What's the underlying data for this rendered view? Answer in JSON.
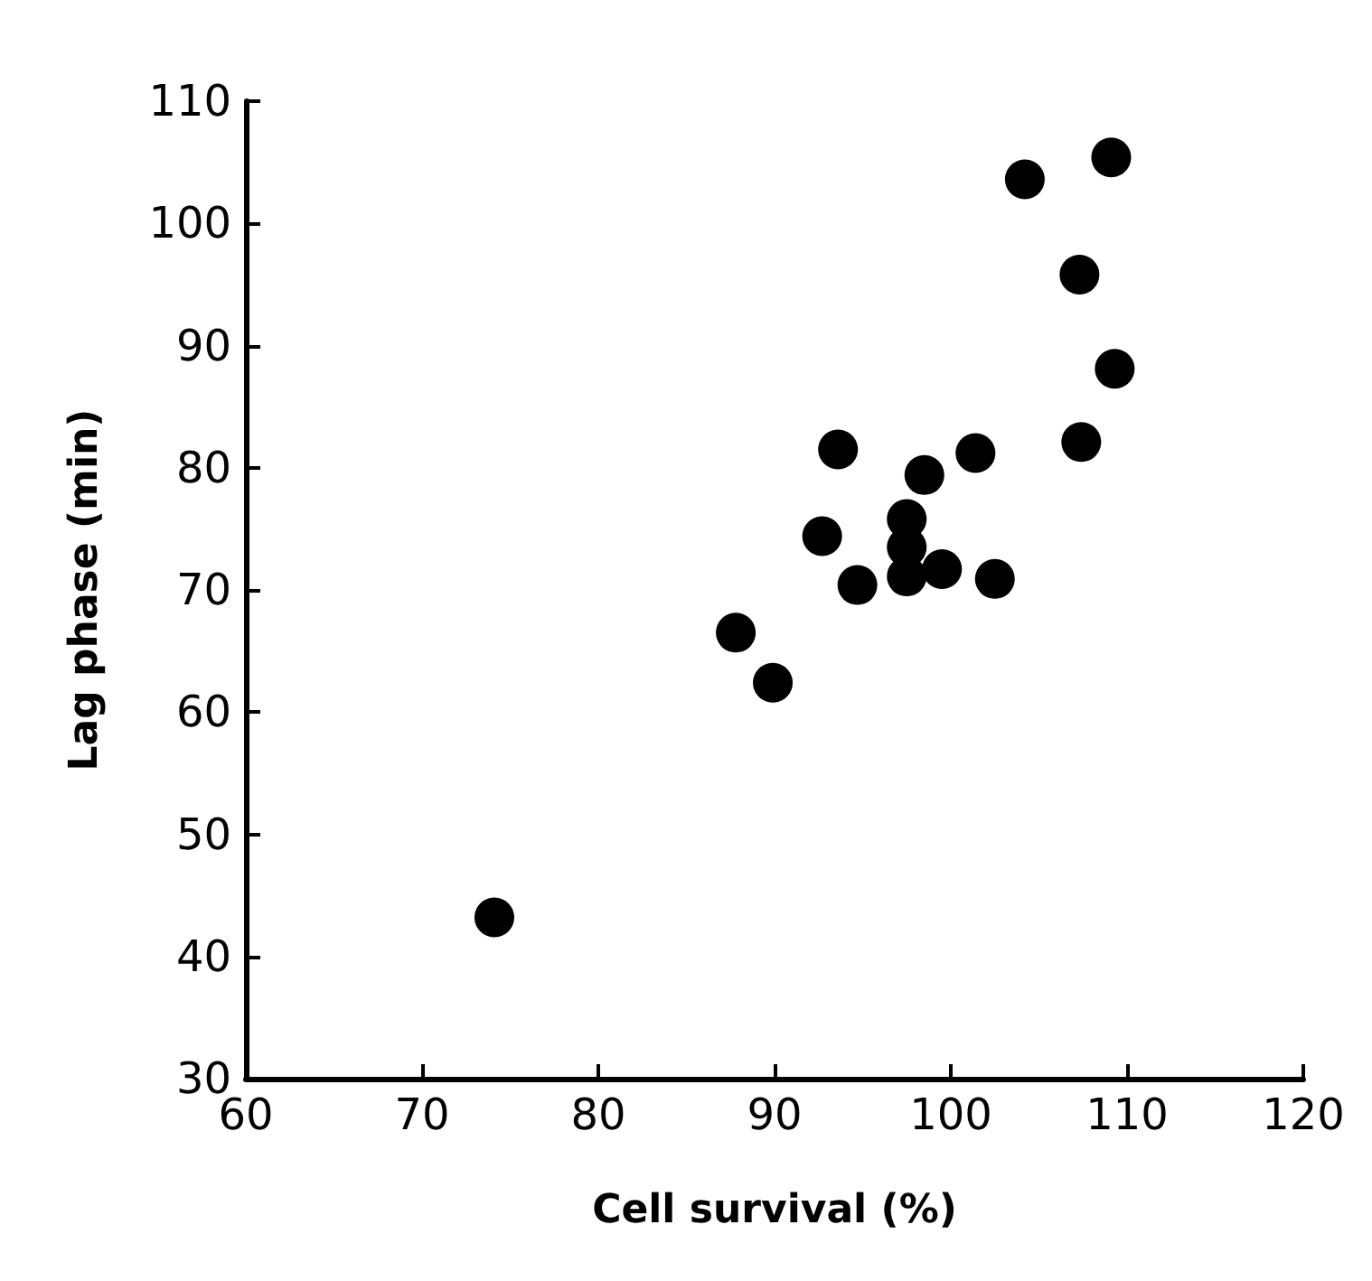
{
  "chart_data": {
    "type": "scatter",
    "xlabel": "Cell survival (%)",
    "ylabel": "Lag phase (min)",
    "x": [
      104.2,
      109.1,
      107.3,
      109.3,
      107.4,
      93.6,
      101.4,
      98.5,
      97.5,
      92.7,
      97.5,
      99.5,
      97.5,
      102.5,
      94.7,
      87.8,
      89.9,
      74.1
    ],
    "series": [
      {
        "color": "#000000",
        "values": [
          103.6,
          105.4,
          95.8,
          88.1,
          82.1,
          81.5,
          81.2,
          79.4,
          75.8,
          74.4,
          73.5,
          71.7,
          71.1,
          70.9,
          70.4,
          66.5,
          62.4,
          43.2
        ]
      }
    ],
    "xlim": [
      60,
      120
    ],
    "xticks": [
      60,
      70,
      80,
      90,
      100,
      110,
      120
    ],
    "ylim": [
      30,
      110
    ],
    "yticks": [
      30,
      40,
      50,
      60,
      70,
      80,
      90,
      100,
      110
    ],
    "grid": false,
    "marker": "circle"
  }
}
